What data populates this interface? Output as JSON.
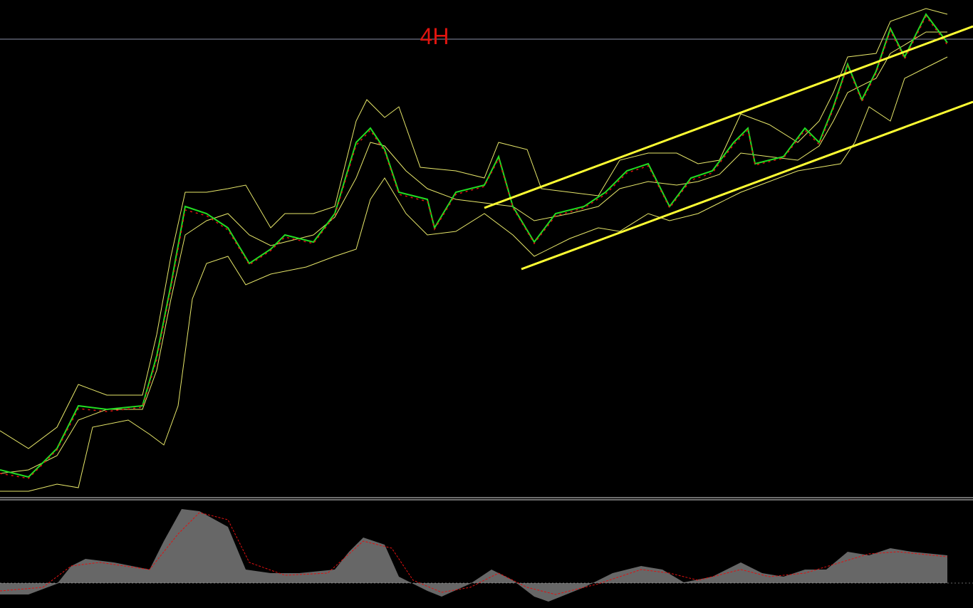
{
  "chart_label": "4H"
}
